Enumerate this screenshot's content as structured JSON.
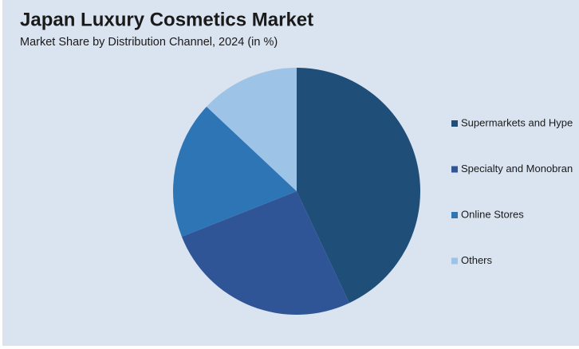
{
  "chart_data": {
    "type": "pie",
    "title": "Japan Luxury Cosmetics Market",
    "subtitle": "Market Share by Distribution Channel, 2024 (in %)",
    "categories": [
      "Supermarkets and Hype",
      "Specialty and Monobran",
      "Online Stores",
      "Others"
    ],
    "values": [
      43,
      26,
      18,
      13
    ],
    "colors": [
      "#1f4e79",
      "#2f5597",
      "#2e75b6",
      "#9dc3e6"
    ],
    "legend": "right"
  }
}
